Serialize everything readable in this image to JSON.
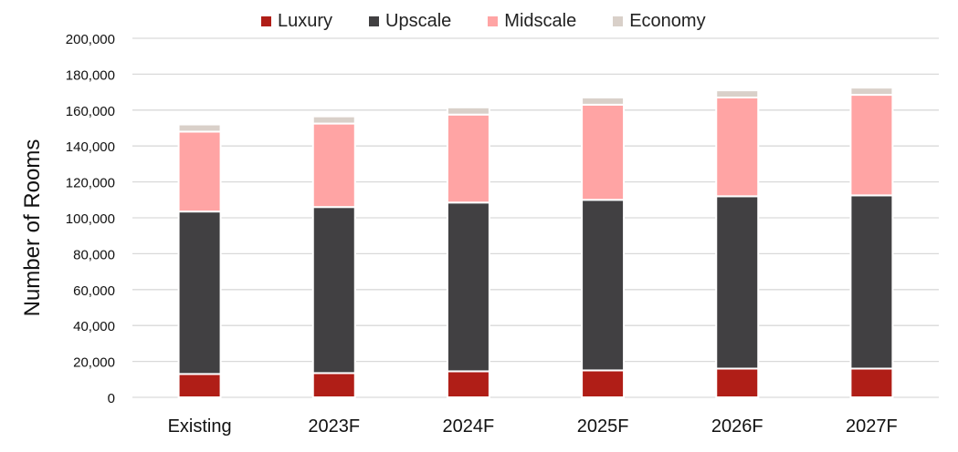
{
  "chart_data": {
    "type": "bar",
    "stacked": true,
    "categories": [
      "Existing",
      "2023F",
      "2024F",
      "2025F",
      "2026F",
      "2027F"
    ],
    "series": [
      {
        "name": "Luxury",
        "color": "#b01e17",
        "values": [
          13000,
          13500,
          14500,
          15000,
          16000,
          16000
        ]
      },
      {
        "name": "Upscale",
        "color": "#414042",
        "values": [
          90500,
          92500,
          94000,
          95000,
          96000,
          96500
        ]
      },
      {
        "name": "Midscale",
        "color": "#ffa4a4",
        "values": [
          44500,
          46500,
          49000,
          53000,
          55000,
          56000
        ]
      },
      {
        "name": "Economy",
        "color": "#d9d0c9",
        "values": [
          4000,
          4000,
          4000,
          4000,
          4000,
          4000
        ]
      }
    ],
    "title": "",
    "xlabel": "",
    "ylabel": "Number of Rooms",
    "ylim": [
      0,
      200000
    ],
    "yticks": [
      "0",
      "20,000",
      "40,000",
      "60,000",
      "80,000",
      "100,000",
      "120,000",
      "140,000",
      "160,000",
      "180,000",
      "200,000"
    ],
    "grid": true,
    "legend_position": "top"
  }
}
